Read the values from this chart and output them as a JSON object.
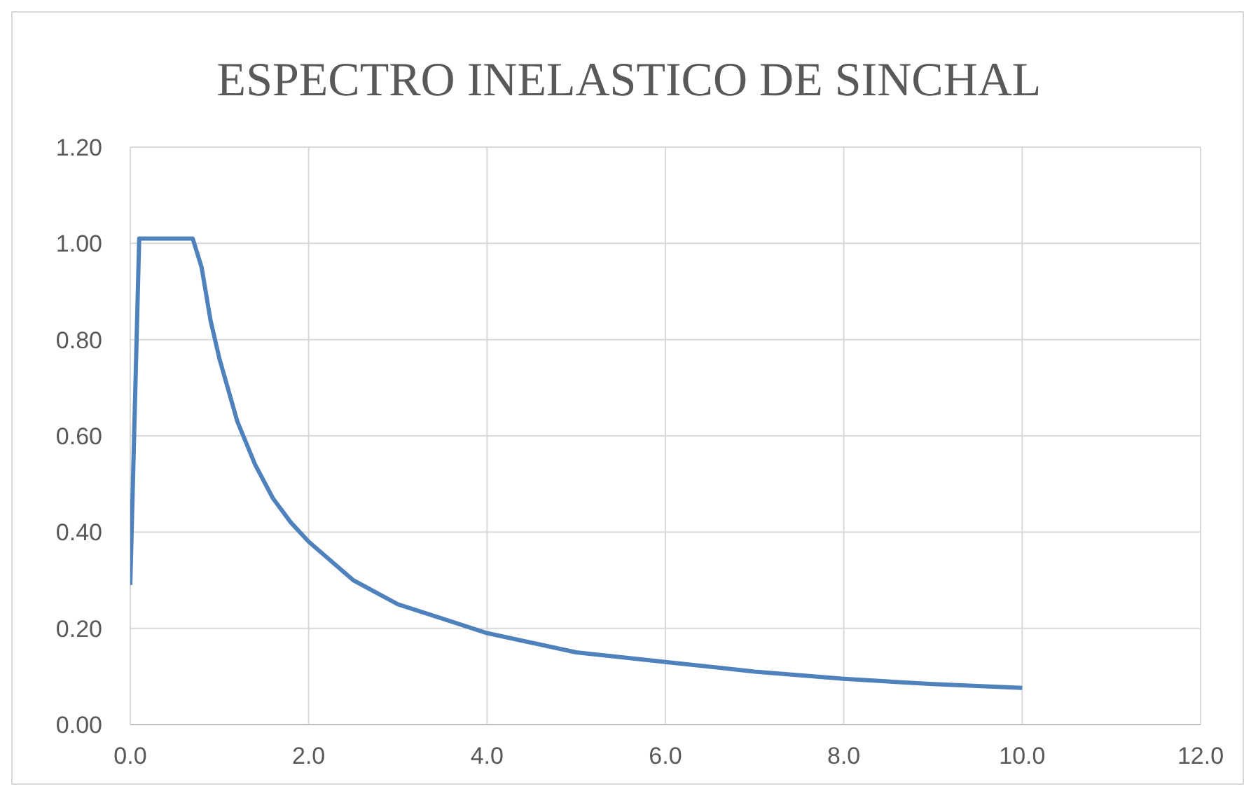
{
  "chart_data": {
    "type": "line",
    "title": "ESPECTRO INELASTICO DE SINCHAL",
    "x": [
      0,
      0.1,
      0.7,
      0.8,
      0.9,
      1.0,
      1.2,
      1.4,
      1.6,
      1.8,
      2.0,
      2.5,
      3.0,
      3.5,
      4.0,
      5.0,
      6.0,
      7.0,
      8.0,
      9.0,
      10.0
    ],
    "series": [
      {
        "color": "#4f81bd",
        "values": [
          0.29,
          1.01,
          1.01,
          0.95,
          0.84,
          0.76,
          0.63,
          0.54,
          0.47,
          0.42,
          0.38,
          0.3,
          0.25,
          0.22,
          0.19,
          0.15,
          0.13,
          0.11,
          0.095,
          0.084,
          0.076
        ]
      }
    ],
    "xlim": [
      0,
      12
    ],
    "xticks": [
      {
        "value": 0,
        "label": "0.0"
      },
      {
        "value": 2,
        "label": "2.0"
      },
      {
        "value": 4,
        "label": "4.0"
      },
      {
        "value": 6,
        "label": "6.0"
      },
      {
        "value": 8,
        "label": "8.0"
      },
      {
        "value": 10,
        "label": "10.0"
      },
      {
        "value": 12,
        "label": "12.0"
      }
    ],
    "ylim": [
      0,
      1.2
    ],
    "yticks": [
      {
        "value": 0,
        "label": "0.00"
      },
      {
        "value": 0.2,
        "label": "0.20"
      },
      {
        "value": 0.4,
        "label": "0.40"
      },
      {
        "value": 0.6,
        "label": "0.60"
      },
      {
        "value": 0.8,
        "label": "0.80"
      },
      {
        "value": 1,
        "label": "1.00"
      },
      {
        "value": 1.2,
        "label": "1.20"
      }
    ],
    "grid": true,
    "marker": "none",
    "line_style": "solid"
  }
}
